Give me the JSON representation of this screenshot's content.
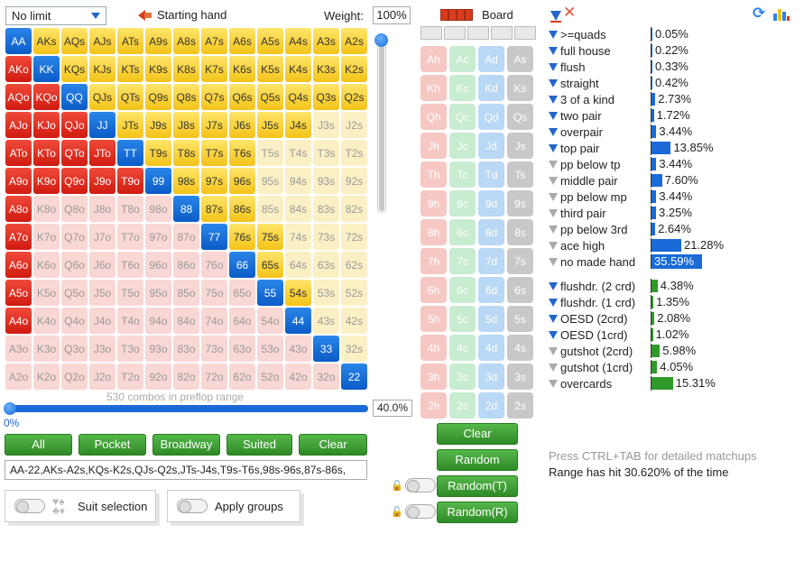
{
  "top": {
    "limit_select": "No limit",
    "starting_hand_label": "Starting hand",
    "weight_label": "Weight:",
    "weight_value": "100%",
    "board_label": "Board"
  },
  "grid": {
    "rows": [
      [
        "AA",
        "AKs",
        "AQs",
        "AJs",
        "ATs",
        "A9s",
        "A8s",
        "A7s",
        "A6s",
        "A5s",
        "A4s",
        "A3s",
        "A2s"
      ],
      [
        "AKo",
        "KK",
        "KQs",
        "KJs",
        "KTs",
        "K9s",
        "K8s",
        "K7s",
        "K6s",
        "K5s",
        "K4s",
        "K3s",
        "K2s"
      ],
      [
        "AQo",
        "KQo",
        "QQ",
        "QJs",
        "QTs",
        "Q9s",
        "Q8s",
        "Q7s",
        "Q6s",
        "Q5s",
        "Q4s",
        "Q3s",
        "Q2s"
      ],
      [
        "AJo",
        "KJo",
        "QJo",
        "JJ",
        "JTs",
        "J9s",
        "J8s",
        "J7s",
        "J6s",
        "J5s",
        "J4s",
        "J3s",
        "J2s"
      ],
      [
        "ATo",
        "KTo",
        "QTo",
        "JTo",
        "TT",
        "T9s",
        "T8s",
        "T7s",
        "T6s",
        "T5s",
        "T4s",
        "T3s",
        "T2s"
      ],
      [
        "A9o",
        "K9o",
        "Q9o",
        "J9o",
        "T9o",
        "99",
        "98s",
        "97s",
        "96s",
        "95s",
        "94s",
        "93s",
        "92s"
      ],
      [
        "A8o",
        "K8o",
        "Q8o",
        "J8o",
        "T8o",
        "98o",
        "88",
        "87s",
        "86s",
        "85s",
        "84s",
        "83s",
        "82s"
      ],
      [
        "A7o",
        "K7o",
        "Q7o",
        "J7o",
        "T7o",
        "97o",
        "87o",
        "77",
        "76s",
        "75s",
        "74s",
        "73s",
        "72s"
      ],
      [
        "A6o",
        "K6o",
        "Q6o",
        "J6o",
        "T6o",
        "96o",
        "86o",
        "76o",
        "66",
        "65s",
        "64s",
        "63s",
        "62s"
      ],
      [
        "A5o",
        "K5o",
        "Q5o",
        "J5o",
        "T5o",
        "95o",
        "85o",
        "75o",
        "65o",
        "55",
        "54s",
        "53s",
        "52s"
      ],
      [
        "A4o",
        "K4o",
        "Q4o",
        "J4o",
        "T4o",
        "94o",
        "84o",
        "74o",
        "64o",
        "54o",
        "44",
        "43s",
        "42s"
      ],
      [
        "A3o",
        "K3o",
        "Q3o",
        "J3o",
        "T3o",
        "93o",
        "83o",
        "73o",
        "63o",
        "53o",
        "43o",
        "33",
        "32s"
      ],
      [
        "A2o",
        "K2o",
        "Q2o",
        "J2o",
        "T2o",
        "92o",
        "82o",
        "72o",
        "62o",
        "52o",
        "42o",
        "32o",
        "22"
      ]
    ],
    "selected": [
      "AA",
      "AKs",
      "AQs",
      "AJs",
      "ATs",
      "A9s",
      "A8s",
      "A7s",
      "A6s",
      "A5s",
      "A4s",
      "A3s",
      "A2s",
      "KK",
      "KQs",
      "KJs",
      "KTs",
      "K9s",
      "K8s",
      "K7s",
      "K6s",
      "K5s",
      "K4s",
      "K3s",
      "K2s",
      "QQ",
      "QJs",
      "QTs",
      "Q9s",
      "Q8s",
      "Q7s",
      "Q6s",
      "Q5s",
      "Q4s",
      "Q3s",
      "Q2s",
      "JJ",
      "JTs",
      "J9s",
      "J8s",
      "J7s",
      "J6s",
      "J5s",
      "J4s",
      "TT",
      "T9s",
      "T8s",
      "T7s",
      "T6s",
      "99",
      "98s",
      "97s",
      "96s",
      "88",
      "87s",
      "86s",
      "77",
      "76s",
      "75s",
      "66",
      "65s",
      "55",
      "54s",
      "44",
      "33",
      "22",
      "AKo",
      "KQo",
      "AQo",
      "AJo",
      "KJo",
      "QJo",
      "ATo",
      "KTo",
      "QTo",
      "JTo",
      "A9o",
      "K9o",
      "Q9o",
      "J9o",
      "T9o",
      "A8o",
      "A7o",
      "A6o",
      "A5o",
      "A4o"
    ]
  },
  "combos_label": "530 combos in preflop range",
  "slider_left_label": "0%",
  "range_percent": "40.0%",
  "buttons": {
    "all": "All",
    "pocket": "Pocket",
    "broadway": "Broadway",
    "suited": "Suited",
    "clear": "Clear"
  },
  "range_text": "AA-22,AKs-A2s,KQs-K2s,QJs-Q2s,JTs-J4s,T9s-T6s,98s-96s,87s-86s,",
  "toggles": {
    "suit_selection": "Suit selection",
    "apply_groups": "Apply groups"
  },
  "board": {
    "cards": [
      [
        "Ah",
        "Ac",
        "Ad",
        "As"
      ],
      [
        "Kh",
        "Kc",
        "Kd",
        "Ks"
      ],
      [
        "Qh",
        "Qc",
        "Qd",
        "Qs"
      ],
      [
        "Jh",
        "Jc",
        "Jd",
        "Js"
      ],
      [
        "Th",
        "Tc",
        "Td",
        "Ts"
      ],
      [
        "9h",
        "9c",
        "9d",
        "9s"
      ],
      [
        "8h",
        "8c",
        "8d",
        "8s"
      ],
      [
        "7h",
        "7c",
        "7d",
        "7s"
      ],
      [
        "6h",
        "6c",
        "6d",
        "6s"
      ],
      [
        "5h",
        "5c",
        "5d",
        "5s"
      ],
      [
        "4h",
        "4c",
        "4d",
        "4s"
      ],
      [
        "3h",
        "3c",
        "3d",
        "3s"
      ],
      [
        "2h",
        "2c",
        "2d",
        "2s"
      ]
    ],
    "clear": "Clear",
    "random": "Random",
    "random_t": "Random(T)",
    "random_r": "Random(R)"
  },
  "stats": {
    "made": [
      {
        "label": ">=quads",
        "value": "0.05%",
        "pct": 0.05,
        "active": true
      },
      {
        "label": "full house",
        "value": "0.22%",
        "pct": 0.22,
        "active": true
      },
      {
        "label": "flush",
        "value": "0.33%",
        "pct": 0.33,
        "active": true
      },
      {
        "label": "straight",
        "value": "0.42%",
        "pct": 0.42,
        "active": true
      },
      {
        "label": "3 of a kind",
        "value": "2.73%",
        "pct": 2.73,
        "active": true
      },
      {
        "label": "two pair",
        "value": "1.72%",
        "pct": 1.72,
        "active": true
      },
      {
        "label": "overpair",
        "value": "3.44%",
        "pct": 3.44,
        "active": true
      },
      {
        "label": "top pair",
        "value": "13.85%",
        "pct": 13.85,
        "active": true
      },
      {
        "label": "pp below tp",
        "value": "3.44%",
        "pct": 3.44,
        "active": false
      },
      {
        "label": "middle pair",
        "value": "7.60%",
        "pct": 7.6,
        "active": false
      },
      {
        "label": "pp below mp",
        "value": "3.44%",
        "pct": 3.44,
        "active": false
      },
      {
        "label": "third pair",
        "value": "3.25%",
        "pct": 3.25,
        "active": false
      },
      {
        "label": "pp below 3rd",
        "value": "2.64%",
        "pct": 2.64,
        "active": false
      },
      {
        "label": "ace high",
        "value": "21.28%",
        "pct": 21.28,
        "active": false
      },
      {
        "label": "no made hand",
        "value": "35.59%",
        "pct": 35.59,
        "active": false
      }
    ],
    "draws": [
      {
        "label": "flushdr. (2 crd)",
        "value": "4.38%",
        "pct": 4.38,
        "active": true
      },
      {
        "label": "flushdr. (1 crd)",
        "value": "1.35%",
        "pct": 1.35,
        "active": true
      },
      {
        "label": "OESD (2crd)",
        "value": "2.08%",
        "pct": 2.08,
        "active": true
      },
      {
        "label": "OESD (1crd)",
        "value": "1.02%",
        "pct": 1.02,
        "active": true
      },
      {
        "label": "gutshot (2crd)",
        "value": "5.98%",
        "pct": 5.98,
        "active": false
      },
      {
        "label": "gutshot (1crd)",
        "value": "4.05%",
        "pct": 4.05,
        "active": false
      },
      {
        "label": "overcards",
        "value": "15.31%",
        "pct": 15.31,
        "active": false
      }
    ],
    "hint": "Press CTRL+TAB for detailed matchups",
    "hit_text": "Range has hit 30.620% of the time"
  },
  "colors": {
    "made_bar": "#1a6ad8",
    "draw_bar": "#2f9a2a",
    "no_made_highlight": "#1a6ad8"
  }
}
